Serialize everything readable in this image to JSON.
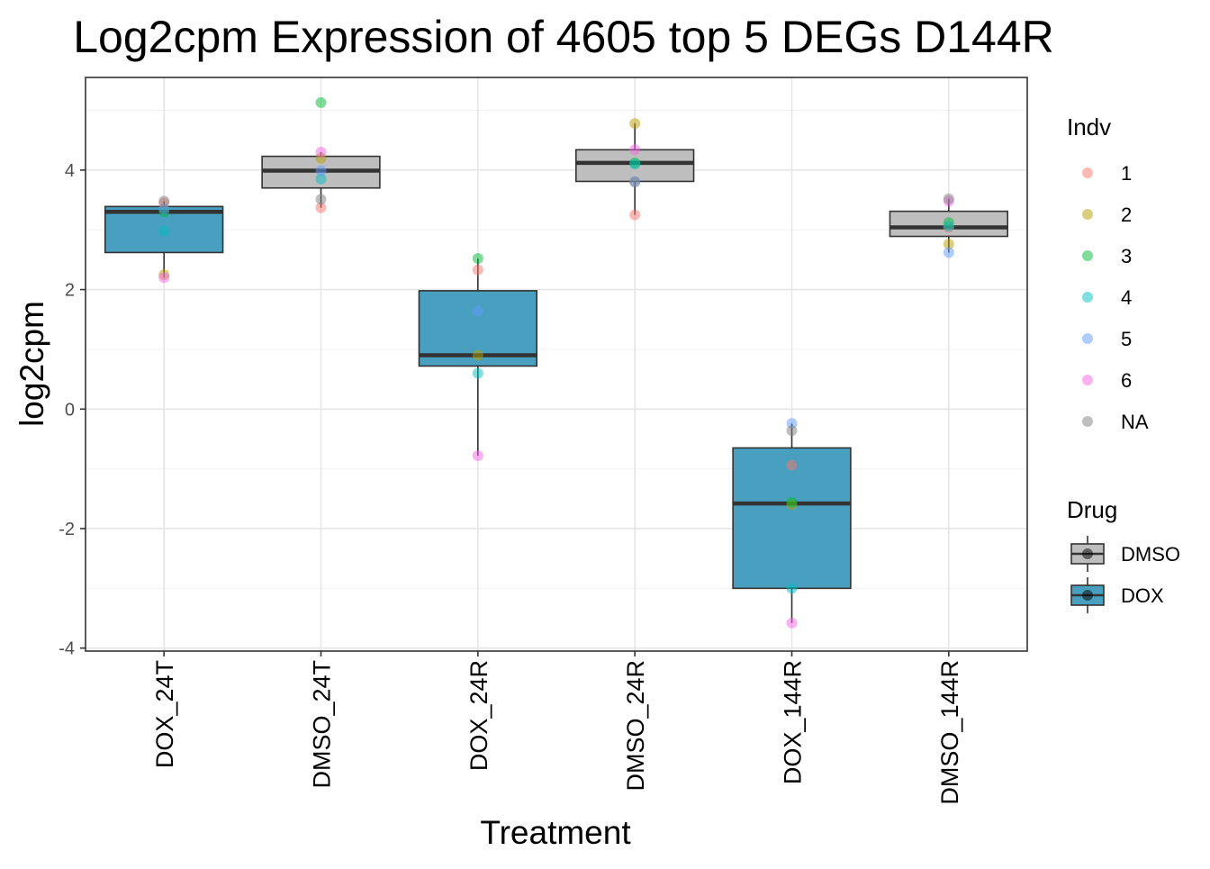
{
  "chart_data": {
    "type": "box",
    "title": "Log2cpm Expression of 4605 top 5 DEGs D144R",
    "xlabel": "Treatment",
    "ylabel": "log2cpm",
    "categories": [
      "DOX_24T",
      "DMSO_24T",
      "DOX_24R",
      "DMSO_24R",
      "DOX_144R",
      "DMSO_144R"
    ],
    "ylim": [
      -4.05,
      5.55
    ],
    "yticks": [
      -4,
      -2,
      0,
      2,
      4
    ],
    "grid": true,
    "boxes": [
      {
        "category": "DOX_24T",
        "drug": "DOX",
        "q1": 2.62,
        "median": 3.3,
        "q3": 3.39,
        "whisker_low": 2.2,
        "whisker_high": 3.48
      },
      {
        "category": "DMSO_24T",
        "drug": "DMSO",
        "q1": 3.7,
        "median": 3.99,
        "q3": 4.23,
        "whisker_low": 3.37,
        "whisker_high": 4.3
      },
      {
        "category": "DOX_24R",
        "drug": "DOX",
        "q1": 0.72,
        "median": 0.9,
        "q3": 1.98,
        "whisker_low": -0.78,
        "whisker_high": 2.52
      },
      {
        "category": "DMSO_24R",
        "drug": "DMSO",
        "q1": 3.81,
        "median": 4.12,
        "q3": 4.34,
        "whisker_low": 3.25,
        "whisker_high": 4.78
      },
      {
        "category": "DOX_144R",
        "drug": "DOX",
        "q1": -3.0,
        "median": -1.58,
        "q3": -0.65,
        "whisker_low": -3.58,
        "whisker_high": -0.24
      },
      {
        "category": "DMSO_144R",
        "drug": "DMSO",
        "q1": 2.89,
        "median": 3.04,
        "q3": 3.31,
        "whisker_low": 2.62,
        "whisker_high": 3.52
      }
    ],
    "points": [
      {
        "category": "DOX_24T",
        "indv": "1",
        "y": 3.45
      },
      {
        "category": "DOX_24T",
        "indv": "2",
        "y": 2.25
      },
      {
        "category": "DOX_24T",
        "indv": "3",
        "y": 3.3
      },
      {
        "category": "DOX_24T",
        "indv": "4",
        "y": 2.98
      },
      {
        "category": "DOX_24T",
        "indv": "5",
        "y": 3.35
      },
      {
        "category": "DOX_24T",
        "indv": "6",
        "y": 2.2
      },
      {
        "category": "DOX_24T",
        "indv": "NA",
        "y": 3.48
      },
      {
        "category": "DMSO_24T",
        "indv": "1",
        "y": 3.37
      },
      {
        "category": "DMSO_24T",
        "indv": "2",
        "y": 4.2
      },
      {
        "category": "DMSO_24T",
        "indv": "3",
        "y": 5.13
      },
      {
        "category": "DMSO_24T",
        "indv": "4",
        "y": 3.85
      },
      {
        "category": "DMSO_24T",
        "indv": "5",
        "y": 3.99
      },
      {
        "category": "DMSO_24T",
        "indv": "6",
        "y": 4.3
      },
      {
        "category": "DMSO_24T",
        "indv": "NA",
        "y": 3.51
      },
      {
        "category": "DOX_24R",
        "indv": "1",
        "y": 2.33
      },
      {
        "category": "DOX_24R",
        "indv": "2",
        "y": 0.9
      },
      {
        "category": "DOX_24R",
        "indv": "3",
        "y": 2.52
      },
      {
        "category": "DOX_24R",
        "indv": "4",
        "y": 0.6
      },
      {
        "category": "DOX_24R",
        "indv": "5",
        "y": 1.64
      },
      {
        "category": "DOX_24R",
        "indv": "6",
        "y": -0.78
      },
      {
        "category": "DMSO_24R",
        "indv": "1",
        "y": 3.25
      },
      {
        "category": "DMSO_24R",
        "indv": "2",
        "y": 4.78
      },
      {
        "category": "DMSO_24R",
        "indv": "3",
        "y": 4.12
      },
      {
        "category": "DMSO_24R",
        "indv": "4",
        "y": 4.1
      },
      {
        "category": "DMSO_24R",
        "indv": "5",
        "y": 3.81
      },
      {
        "category": "DMSO_24R",
        "indv": "6",
        "y": 4.34
      },
      {
        "category": "DMSO_24R",
        "indv": "NA",
        "y": 3.8
      },
      {
        "category": "DOX_144R",
        "indv": "1",
        "y": -0.94
      },
      {
        "category": "DOX_144R",
        "indv": "2",
        "y": -1.6
      },
      {
        "category": "DOX_144R",
        "indv": "3",
        "y": -1.56
      },
      {
        "category": "DOX_144R",
        "indv": "4",
        "y": -3.0
      },
      {
        "category": "DOX_144R",
        "indv": "5",
        "y": -0.24
      },
      {
        "category": "DOX_144R",
        "indv": "6",
        "y": -3.58
      },
      {
        "category": "DOX_144R",
        "indv": "NA",
        "y": -0.36
      },
      {
        "category": "DMSO_144R",
        "indv": "1",
        "y": 3.04
      },
      {
        "category": "DMSO_144R",
        "indv": "2",
        "y": 2.76
      },
      {
        "category": "DMSO_144R",
        "indv": "3",
        "y": 3.12
      },
      {
        "category": "DMSO_144R",
        "indv": "4",
        "y": 3.06
      },
      {
        "category": "DMSO_144R",
        "indv": "5",
        "y": 2.62
      },
      {
        "category": "DMSO_144R",
        "indv": "6",
        "y": 3.48
      },
      {
        "category": "DMSO_144R",
        "indv": "NA",
        "y": 3.52
      }
    ],
    "legend_indv": {
      "title": "Indv",
      "position": "right",
      "items": [
        {
          "label": "1",
          "color": "#F8766D"
        },
        {
          "label": "2",
          "color": "#B79F00"
        },
        {
          "label": "3",
          "color": "#00BA38"
        },
        {
          "label": "4",
          "color": "#00BFC4"
        },
        {
          "label": "5",
          "color": "#619CFF"
        },
        {
          "label": "6",
          "color": "#F564E3"
        },
        {
          "label": "NA",
          "color": "#7F7F7F"
        }
      ]
    },
    "legend_drug": {
      "title": "Drug",
      "position": "right",
      "items": [
        {
          "label": "DMSO",
          "color": "#BEBEBE"
        },
        {
          "label": "DOX",
          "color": "#499FBF"
        }
      ]
    }
  }
}
